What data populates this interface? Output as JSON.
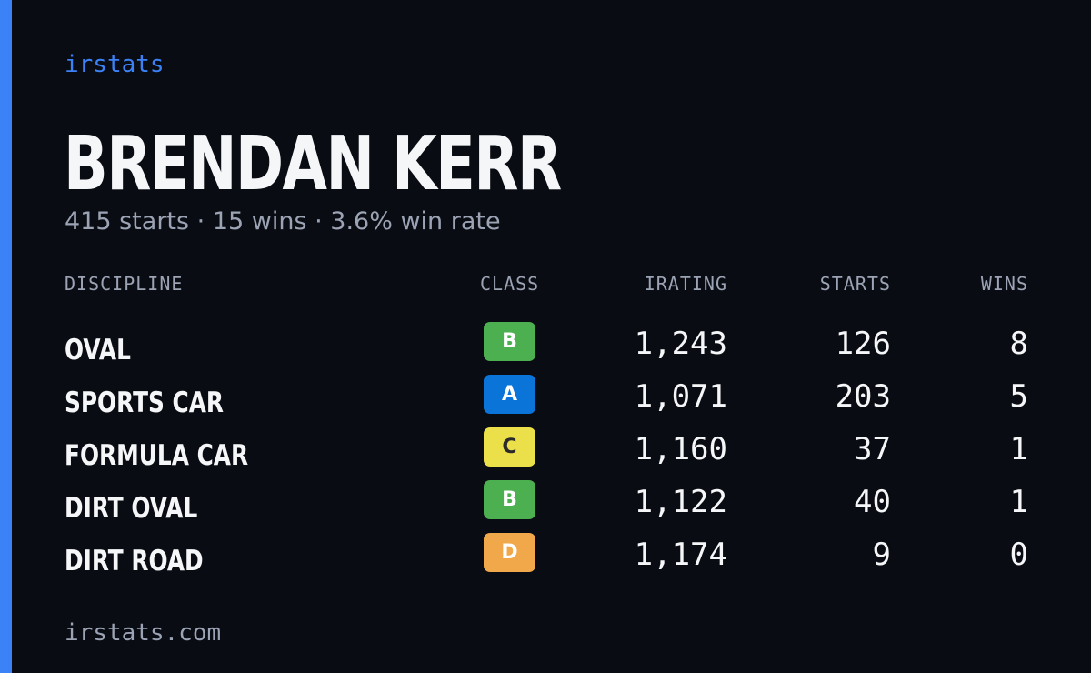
{
  "brand": "irstats",
  "driver": {
    "name": "BRENDAN KERR",
    "summary": "415 starts · 15 wins · 3.6% win rate"
  },
  "table": {
    "headers": {
      "discipline": "DISCIPLINE",
      "class": "CLASS",
      "irating": "IRATING",
      "starts": "STARTS",
      "wins": "WINS"
    },
    "rows": [
      {
        "discipline": "OVAL",
        "class": "B",
        "class_color": "#4caf50",
        "class_text_color": "#ffffff",
        "irating": "1,243",
        "starts": "126",
        "wins": "8"
      },
      {
        "discipline": "SPORTS CAR",
        "class": "A",
        "class_color": "#0b74d9",
        "class_text_color": "#ffffff",
        "irating": "1,071",
        "starts": "203",
        "wins": "5"
      },
      {
        "discipline": "FORMULA CAR",
        "class": "C",
        "class_color": "#ebe04a",
        "class_text_color": "#2a2a2a",
        "irating": "1,160",
        "starts": "37",
        "wins": "1"
      },
      {
        "discipline": "DIRT OVAL",
        "class": "B",
        "class_color": "#4caf50",
        "class_text_color": "#ffffff",
        "irating": "1,122",
        "starts": "40",
        "wins": "1"
      },
      {
        "discipline": "DIRT ROAD",
        "class": "D",
        "class_color": "#f0a84a",
        "class_text_color": "#ffffff",
        "irating": "1,174",
        "starts": "9",
        "wins": "0"
      }
    ]
  },
  "footer": "irstats.com",
  "colors": {
    "accent": "#3b82f6",
    "background": "#0a0c13",
    "muted_text": "#9ba3b4"
  }
}
